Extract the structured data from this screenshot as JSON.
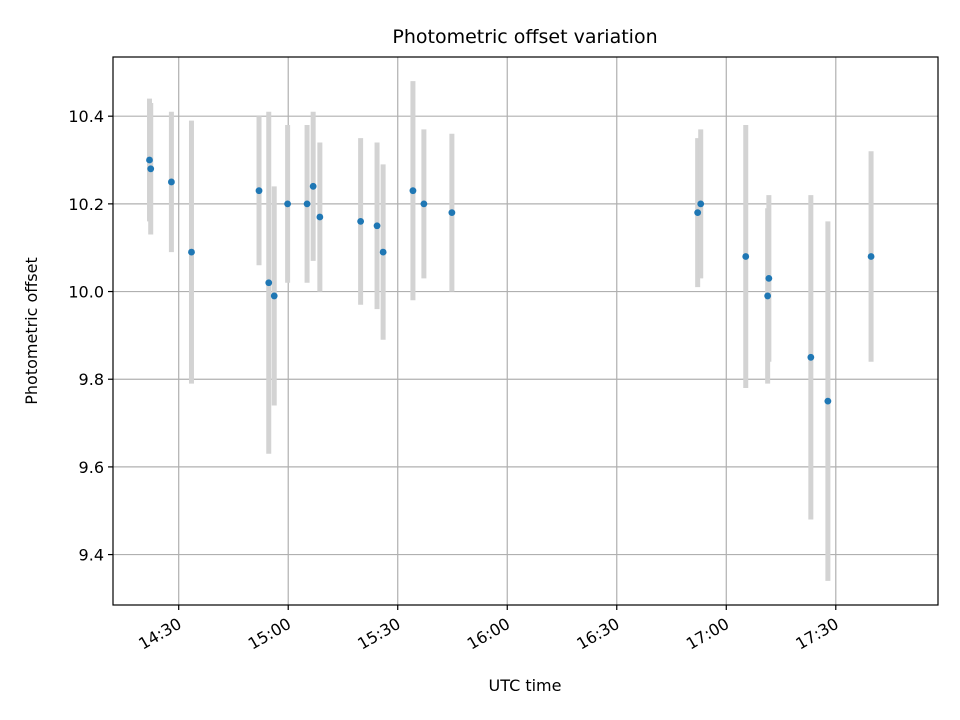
{
  "chart_data": {
    "type": "scatter",
    "title": "Photometric offset variation",
    "xlabel": "UTC time",
    "ylabel": "Photometric offset",
    "x_axis_kind": "time",
    "xlim": [
      "14:12",
      "17:58"
    ],
    "ylim": [
      9.285,
      10.535
    ],
    "grid": true,
    "colors": {
      "point": "#1f77b4",
      "errorbar": "#d3d3d3",
      "grid": "#b0b0b0"
    },
    "x_ticks": [
      "14:30",
      "15:00",
      "15:30",
      "16:00",
      "16:30",
      "17:00",
      "17:30"
    ],
    "y_ticks": [
      "9.4",
      "9.6",
      "9.8",
      "10.0",
      "10.2",
      "10.4"
    ],
    "series": [
      {
        "points": [
          {
            "t": "14:22:00",
            "y": 10.3,
            "err": 0.14
          },
          {
            "t": "14:22:20",
            "y": 10.28,
            "err": 0.15
          },
          {
            "t": "14:28:00",
            "y": 10.25,
            "err": 0.16
          },
          {
            "t": "14:33:30",
            "y": 10.09,
            "err": 0.3
          },
          {
            "t": "14:52:00",
            "y": 10.23,
            "err": 0.17
          },
          {
            "t": "14:54:40",
            "y": 10.02,
            "err": 0.39
          },
          {
            "t": "14:56:10",
            "y": 9.99,
            "err": 0.25
          },
          {
            "t": "14:59:50",
            "y": 10.2,
            "err": 0.18
          },
          {
            "t": "15:05:10",
            "y": 10.2,
            "err": 0.18
          },
          {
            "t": "15:06:50",
            "y": 10.24,
            "err": 0.17
          },
          {
            "t": "15:08:40",
            "y": 10.17,
            "err": 0.17
          },
          {
            "t": "15:19:50",
            "y": 10.16,
            "err": 0.19
          },
          {
            "t": "15:24:20",
            "y": 10.15,
            "err": 0.19
          },
          {
            "t": "15:26:00",
            "y": 10.09,
            "err": 0.2
          },
          {
            "t": "15:34:10",
            "y": 10.23,
            "err": 0.25
          },
          {
            "t": "15:37:10",
            "y": 10.2,
            "err": 0.17
          },
          {
            "t": "15:44:50",
            "y": 10.18,
            "err": 0.18
          },
          {
            "t": "16:52:10",
            "y": 10.18,
            "err": 0.17
          },
          {
            "t": "16:53:00",
            "y": 10.2,
            "err": 0.17
          },
          {
            "t": "17:05:20",
            "y": 10.08,
            "err": 0.3
          },
          {
            "t": "17:11:20",
            "y": 9.99,
            "err": 0.2
          },
          {
            "t": "17:11:40",
            "y": 10.03,
            "err": 0.19
          },
          {
            "t": "17:23:10",
            "y": 9.85,
            "err": 0.37
          },
          {
            "t": "17:27:50",
            "y": 9.75,
            "err": 0.41
          },
          {
            "t": "17:39:40",
            "y": 10.08,
            "err": 0.24
          }
        ]
      }
    ]
  }
}
